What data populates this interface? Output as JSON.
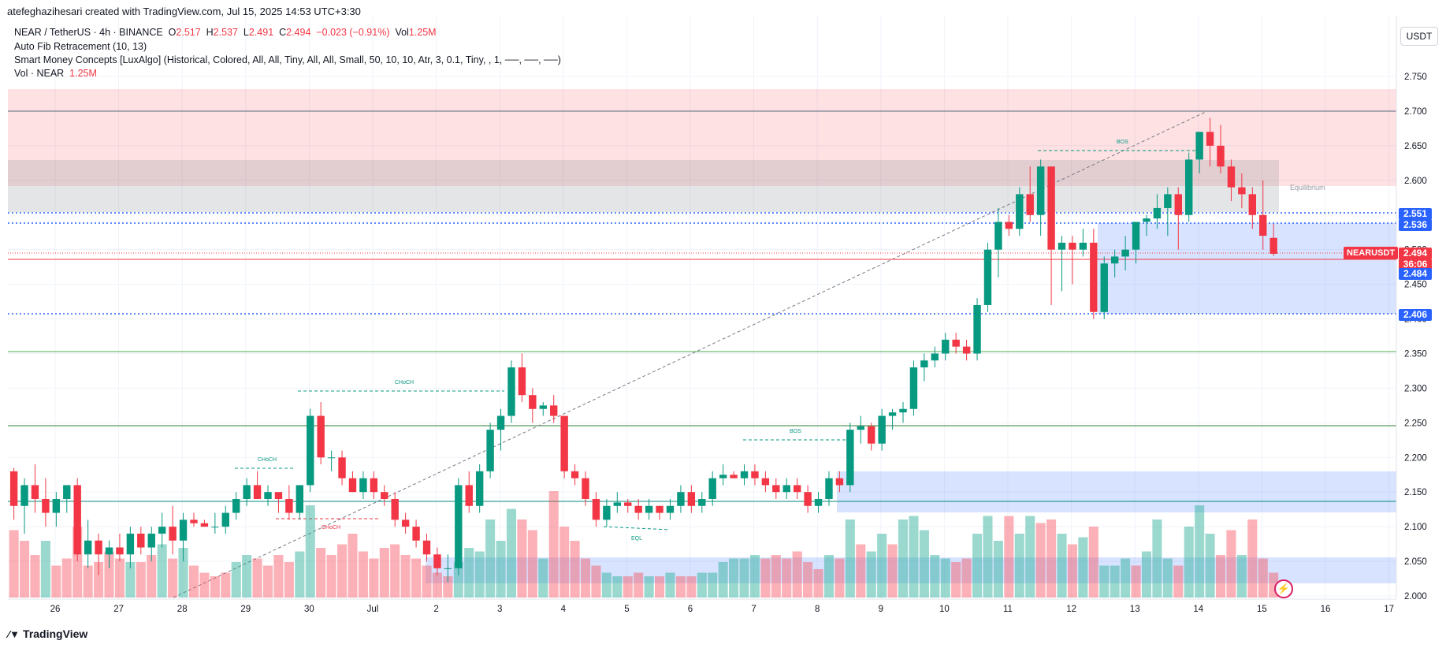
{
  "header": "atefeghazihesari created with TradingView.com, Jul 15, 2025 14:53 UTC+3:30",
  "legend": {
    "symbol": "NEAR / TetherUS · 4h · BINANCE",
    "o_label": "O",
    "o": "2.517",
    "h_label": "H",
    "h": "2.537",
    "l_label": "L",
    "l": "2.491",
    "c_label": "C",
    "c": "2.494",
    "change": "−0.023 (−0.91%)",
    "vol_label": "Vol",
    "vol": "1.25M",
    "fib": "Auto Fib Retracement (10, 13)",
    "smc": "Smart Money Concepts [LuxAlgo] (Historical, Colored, All, All, Tiny, All, All, Small, 50, 10, 10, Atr, 3, 0.1, Tiny, , 1, ──, ──, ──)",
    "vol_ind": "Vol · NEAR",
    "vol_ind_val": "1.25M"
  },
  "unit_button": "USDT",
  "footer": "TradingView",
  "price_tags": [
    {
      "label": "2.551",
      "value": 2.551,
      "color": "#2962ff"
    },
    {
      "label": "2.536",
      "value": 2.536,
      "color": "#2962ff"
    },
    {
      "label": "2.494",
      "value": 2.494,
      "color": "#f23645"
    },
    {
      "label": "36:06",
      "value": 2.479,
      "color": "#f23645"
    },
    {
      "label": "2.484",
      "value": 2.465,
      "color": "#2962ff"
    },
    {
      "label": "2.406",
      "value": 2.406,
      "color": "#2962ff"
    }
  ],
  "symbol_tag": "NEARUSDT",
  "annotations": {
    "bos1": "BOS",
    "bos2": "BOS",
    "choch1": "CHoCH",
    "choch2": "CHoCH",
    "choch3": "CHoCH",
    "eql": "EQL",
    "equilibrium": "Equilibrium"
  },
  "chart_data": {
    "type": "candlestick",
    "y_ticks": [
      2.75,
      2.7,
      2.65,
      2.6,
      2.55,
      2.5,
      2.45,
      2.4,
      2.35,
      2.3,
      2.25,
      2.2,
      2.15,
      2.1,
      2.05,
      2.0
    ],
    "y_tick_labels": [
      "2.750",
      "2.700",
      "2.650",
      "2.600",
      "2.550",
      "2.500",
      "2.450",
      "2.400",
      "2.350",
      "2.300",
      "2.250",
      "2.200",
      "2.150",
      "2.100",
      "2.050",
      "2.000"
    ],
    "x_labels": [
      "26",
      "27",
      "28",
      "29",
      "30",
      "Jul",
      "2",
      "3",
      "4",
      "5",
      "6",
      "7",
      "8",
      "9",
      "10",
      "11",
      "12",
      "13",
      "14",
      "15",
      "16",
      "17"
    ],
    "x_label_days": [
      0,
      1,
      2,
      3,
      4,
      5,
      6,
      7,
      8,
      9,
      10,
      11,
      12,
      13,
      14,
      15,
      16,
      17,
      18,
      19,
      20,
      21
    ],
    "candles": [
      [
        2.18,
        2.185,
        2.11,
        2.13
      ],
      [
        2.13,
        2.17,
        2.09,
        2.16
      ],
      [
        2.16,
        2.19,
        2.12,
        2.14
      ],
      [
        2.14,
        2.17,
        2.1,
        2.12
      ],
      [
        2.12,
        2.15,
        2.1,
        2.14
      ],
      [
        2.14,
        2.16,
        2.12,
        2.16
      ],
      [
        2.16,
        2.17,
        2.05,
        2.06
      ],
      [
        2.06,
        2.11,
        2.04,
        2.08
      ],
      [
        2.08,
        2.09,
        2.03,
        2.06
      ],
      [
        2.06,
        2.08,
        2.04,
        2.07
      ],
      [
        2.07,
        2.09,
        2.05,
        2.06
      ],
      [
        2.06,
        2.1,
        2.04,
        2.09
      ],
      [
        2.09,
        2.1,
        2.06,
        2.07
      ],
      [
        2.07,
        2.1,
        2.05,
        2.09
      ],
      [
        2.09,
        2.12,
        2.07,
        2.1
      ],
      [
        2.1,
        2.13,
        2.06,
        2.08
      ],
      [
        2.08,
        2.12,
        2.05,
        2.11
      ],
      [
        2.11,
        2.12,
        2.1,
        2.105
      ],
      [
        2.105,
        2.11,
        2.1,
        2.1
      ],
      [
        2.1,
        2.12,
        2.09,
        2.1
      ],
      [
        2.1,
        2.13,
        2.09,
        2.12
      ],
      [
        2.12,
        2.15,
        2.11,
        2.14
      ],
      [
        2.14,
        2.17,
        2.13,
        2.16
      ],
      [
        2.16,
        2.18,
        2.14,
        2.14
      ],
      [
        2.14,
        2.16,
        2.13,
        2.15
      ],
      [
        2.15,
        2.15,
        2.12,
        2.14
      ],
      [
        2.14,
        2.16,
        2.11,
        2.12
      ],
      [
        2.12,
        2.16,
        2.11,
        2.16
      ],
      [
        2.16,
        2.27,
        2.15,
        2.26
      ],
      [
        2.26,
        2.28,
        2.19,
        2.2
      ],
      [
        2.2,
        2.21,
        2.18,
        2.2
      ],
      [
        2.2,
        2.21,
        2.16,
        2.17
      ],
      [
        2.17,
        2.18,
        2.15,
        2.15
      ],
      [
        2.15,
        2.18,
        2.14,
        2.17
      ],
      [
        2.17,
        2.18,
        2.14,
        2.15
      ],
      [
        2.15,
        2.16,
        2.13,
        2.14
      ],
      [
        2.14,
        2.15,
        2.1,
        2.11
      ],
      [
        2.11,
        2.12,
        2.09,
        2.1
      ],
      [
        2.1,
        2.11,
        2.07,
        2.08
      ],
      [
        2.08,
        2.09,
        2.05,
        2.06
      ],
      [
        2.06,
        2.07,
        2.03,
        2.04
      ],
      [
        2.04,
        2.06,
        2.02,
        2.04
      ],
      [
        2.04,
        2.17,
        2.03,
        2.16
      ],
      [
        2.16,
        2.18,
        2.12,
        2.13
      ],
      [
        2.13,
        2.19,
        2.12,
        2.18
      ],
      [
        2.18,
        2.25,
        2.17,
        2.24
      ],
      [
        2.24,
        2.27,
        2.21,
        2.26
      ],
      [
        2.26,
        2.34,
        2.25,
        2.33
      ],
      [
        2.33,
        2.35,
        2.28,
        2.29
      ],
      [
        2.29,
        2.3,
        2.25,
        2.27
      ],
      [
        2.27,
        2.28,
        2.26,
        2.275
      ],
      [
        2.275,
        2.29,
        2.25,
        2.26
      ],
      [
        2.26,
        2.26,
        2.17,
        2.18
      ],
      [
        2.18,
        2.19,
        2.16,
        2.17
      ],
      [
        2.17,
        2.18,
        2.13,
        2.14
      ],
      [
        2.14,
        2.15,
        2.1,
        2.11
      ],
      [
        2.11,
        2.14,
        2.1,
        2.13
      ],
      [
        2.13,
        2.15,
        2.12,
        2.135
      ],
      [
        2.135,
        2.14,
        2.12,
        2.13
      ],
      [
        2.13,
        2.14,
        2.11,
        2.12
      ],
      [
        2.12,
        2.14,
        2.11,
        2.13
      ],
      [
        2.13,
        2.13,
        2.11,
        2.12
      ],
      [
        2.12,
        2.14,
        2.11,
        2.13
      ],
      [
        2.13,
        2.16,
        2.12,
        2.15
      ],
      [
        2.15,
        2.16,
        2.12,
        2.13
      ],
      [
        2.13,
        2.15,
        2.12,
        2.14
      ],
      [
        2.14,
        2.18,
        2.13,
        2.17
      ],
      [
        2.17,
        2.19,
        2.16,
        2.175
      ],
      [
        2.175,
        2.18,
        2.17,
        2.17
      ],
      [
        2.17,
        2.19,
        2.16,
        2.18
      ],
      [
        2.18,
        2.19,
        2.16,
        2.17
      ],
      [
        2.17,
        2.18,
        2.15,
        2.16
      ],
      [
        2.16,
        2.17,
        2.14,
        2.15
      ],
      [
        2.15,
        2.17,
        2.14,
        2.16
      ],
      [
        2.16,
        2.17,
        2.14,
        2.15
      ],
      [
        2.15,
        2.16,
        2.12,
        2.13
      ],
      [
        2.13,
        2.15,
        2.12,
        2.14
      ],
      [
        2.14,
        2.18,
        2.13,
        2.17
      ],
      [
        2.17,
        2.18,
        2.15,
        2.16
      ],
      [
        2.16,
        2.25,
        2.15,
        2.24
      ],
      [
        2.24,
        2.26,
        2.22,
        2.245
      ],
      [
        2.245,
        2.25,
        2.21,
        2.22
      ],
      [
        2.22,
        2.27,
        2.21,
        2.26
      ],
      [
        2.26,
        2.27,
        2.24,
        2.265
      ],
      [
        2.265,
        2.28,
        2.25,
        2.27
      ],
      [
        2.27,
        2.34,
        2.26,
        2.33
      ],
      [
        2.33,
        2.35,
        2.31,
        2.34
      ],
      [
        2.34,
        2.36,
        2.33,
        2.35
      ],
      [
        2.35,
        2.38,
        2.34,
        2.37
      ],
      [
        2.37,
        2.38,
        2.35,
        2.36
      ],
      [
        2.36,
        2.37,
        2.34,
        2.35
      ],
      [
        2.35,
        2.43,
        2.34,
        2.42
      ],
      [
        2.42,
        2.51,
        2.41,
        2.5
      ],
      [
        2.5,
        2.56,
        2.46,
        2.54
      ],
      [
        2.54,
        2.55,
        2.52,
        2.53
      ],
      [
        2.53,
        2.59,
        2.52,
        2.58
      ],
      [
        2.58,
        2.62,
        2.54,
        2.55
      ],
      [
        2.55,
        2.63,
        2.52,
        2.62
      ],
      [
        2.62,
        2.62,
        2.42,
        2.5
      ],
      [
        2.5,
        2.52,
        2.44,
        2.51
      ],
      [
        2.51,
        2.52,
        2.45,
        2.5
      ],
      [
        2.5,
        2.53,
        2.49,
        2.51
      ],
      [
        2.51,
        2.53,
        2.4,
        2.41
      ],
      [
        2.41,
        2.49,
        2.4,
        2.48
      ],
      [
        2.48,
        2.5,
        2.46,
        2.49
      ],
      [
        2.49,
        2.52,
        2.47,
        2.5
      ],
      [
        2.5,
        2.54,
        2.48,
        2.54
      ],
      [
        2.54,
        2.55,
        2.52,
        2.545
      ],
      [
        2.545,
        2.58,
        2.53,
        2.56
      ],
      [
        2.56,
        2.59,
        2.52,
        2.58
      ],
      [
        2.58,
        2.59,
        2.5,
        2.55
      ],
      [
        2.55,
        2.64,
        2.54,
        2.63
      ],
      [
        2.63,
        2.67,
        2.61,
        2.67
      ],
      [
        2.67,
        2.69,
        2.62,
        2.65
      ],
      [
        2.65,
        2.68,
        2.61,
        2.62
      ],
      [
        2.62,
        2.63,
        2.57,
        2.59
      ],
      [
        2.59,
        2.61,
        2.56,
        2.58
      ],
      [
        2.58,
        2.59,
        2.53,
        2.55
      ],
      [
        2.55,
        2.6,
        2.5,
        2.52
      ],
      [
        2.517,
        2.537,
        2.491,
        2.494
      ]
    ],
    "volume": [
      [
        0.95,
        0
      ],
      [
        0.8,
        0
      ],
      [
        0.6,
        0
      ],
      [
        0.8,
        1
      ],
      [
        0.45,
        0
      ],
      [
        0.55,
        0
      ],
      [
        1.0,
        0
      ],
      [
        0.45,
        0
      ],
      [
        0.5,
        0
      ],
      [
        0.65,
        0
      ],
      [
        0.55,
        0
      ],
      [
        0.5,
        1
      ],
      [
        0.5,
        0
      ],
      [
        0.6,
        0
      ],
      [
        0.75,
        1
      ],
      [
        0.55,
        0
      ],
      [
        0.7,
        1
      ],
      [
        0.45,
        0
      ],
      [
        0.35,
        0
      ],
      [
        0.3,
        0
      ],
      [
        0.35,
        0
      ],
      [
        0.5,
        1
      ],
      [
        0.6,
        1
      ],
      [
        0.55,
        0
      ],
      [
        0.45,
        0
      ],
      [
        0.6,
        0
      ],
      [
        0.5,
        0
      ],
      [
        0.65,
        1
      ],
      [
        1.3,
        1
      ],
      [
        0.7,
        0
      ],
      [
        0.6,
        0
      ],
      [
        0.75,
        0
      ],
      [
        0.9,
        0
      ],
      [
        0.65,
        0
      ],
      [
        0.55,
        0
      ],
      [
        0.7,
        0
      ],
      [
        0.75,
        0
      ],
      [
        0.6,
        0
      ],
      [
        0.55,
        0
      ],
      [
        0.45,
        0
      ],
      [
        0.35,
        0
      ],
      [
        0.3,
        0
      ],
      [
        0.5,
        1
      ],
      [
        0.7,
        1
      ],
      [
        0.65,
        1
      ],
      [
        1.1,
        1
      ],
      [
        0.8,
        1
      ],
      [
        1.25,
        1
      ],
      [
        1.1,
        0
      ],
      [
        0.95,
        0
      ],
      [
        0.55,
        1
      ],
      [
        1.5,
        0
      ],
      [
        1.0,
        0
      ],
      [
        0.8,
        0
      ],
      [
        0.55,
        0
      ],
      [
        0.45,
        0
      ],
      [
        0.35,
        1
      ],
      [
        0.3,
        1
      ],
      [
        0.3,
        0
      ],
      [
        0.35,
        0
      ],
      [
        0.3,
        1
      ],
      [
        0.3,
        0
      ],
      [
        0.35,
        1
      ],
      [
        0.3,
        0
      ],
      [
        0.3,
        0
      ],
      [
        0.35,
        1
      ],
      [
        0.35,
        1
      ],
      [
        0.5,
        1
      ],
      [
        0.55,
        1
      ],
      [
        0.55,
        1
      ],
      [
        0.6,
        1
      ],
      [
        0.55,
        0
      ],
      [
        0.6,
        0
      ],
      [
        0.55,
        0
      ],
      [
        0.65,
        0
      ],
      [
        0.5,
        0
      ],
      [
        0.4,
        0
      ],
      [
        0.6,
        1
      ],
      [
        0.55,
        0
      ],
      [
        1.1,
        1
      ],
      [
        0.75,
        0
      ],
      [
        0.65,
        1
      ],
      [
        0.9,
        1
      ],
      [
        0.75,
        0
      ],
      [
        1.1,
        1
      ],
      [
        1.15,
        1
      ],
      [
        0.95,
        1
      ],
      [
        0.6,
        1
      ],
      [
        0.55,
        1
      ],
      [
        0.5,
        0
      ],
      [
        0.55,
        0
      ],
      [
        0.9,
        1
      ],
      [
        1.15,
        1
      ],
      [
        0.8,
        1
      ],
      [
        1.15,
        0
      ],
      [
        0.9,
        1
      ],
      [
        1.15,
        1
      ],
      [
        1.05,
        0
      ],
      [
        1.1,
        0
      ],
      [
        0.9,
        1
      ],
      [
        0.75,
        0
      ],
      [
        0.85,
        1
      ],
      [
        1.0,
        0
      ],
      [
        0.45,
        1
      ],
      [
        0.45,
        1
      ],
      [
        0.55,
        1
      ],
      [
        0.45,
        0
      ],
      [
        0.65,
        1
      ],
      [
        1.1,
        1
      ],
      [
        0.55,
        1
      ],
      [
        0.45,
        0
      ],
      [
        1.0,
        1
      ],
      [
        1.3,
        1
      ],
      [
        0.9,
        1
      ],
      [
        0.6,
        0
      ],
      [
        0.95,
        0
      ],
      [
        0.6,
        1
      ],
      [
        1.1,
        0
      ],
      [
        0.55,
        0
      ],
      [
        0.35,
        0
      ]
    ]
  }
}
